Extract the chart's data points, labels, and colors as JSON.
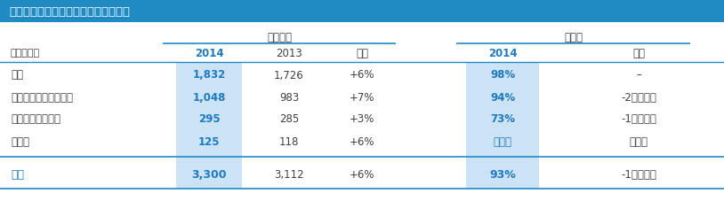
{
  "title": "香港物業組合的租金收入及租出率分析",
  "title_bg": "#1e8bc3",
  "title_color": "#ffffff",
  "subtitle_rental": "租金收入",
  "subtitle_occupancy": "租出率",
  "currency_label": "港幣百萬元",
  "col_headers": [
    "2014",
    "2013",
    "變幅",
    "2014",
    "變幅"
  ],
  "rows": [
    {
      "label": "商鋪",
      "rental_2014": "1,832",
      "rental_2013": "1,726",
      "rental_change": "+6%",
      "occ_2014": "98%",
      "occ_change": "–",
      "occ_2014_blue": true
    },
    {
      "label": "辦公樓及工業／辦公樓",
      "rental_2014": "1,048",
      "rental_2013": "983",
      "rental_change": "+7%",
      "occ_2014": "94%",
      "occ_change": "-2個百分點",
      "occ_2014_blue": true
    },
    {
      "label": "住宅及服務式寓所",
      "rental_2014": "295",
      "rental_2013": "285",
      "rental_change": "+3%",
      "occ_2014": "73%",
      "occ_change": "-1個百分點",
      "occ_2014_blue": true
    },
    {
      "label": "停車場",
      "rental_2014": "125",
      "rental_2013": "118",
      "rental_change": "+6%",
      "occ_2014": "不適用",
      "occ_change": "不適用",
      "occ_2014_blue": true
    }
  ],
  "total_row": {
    "label": "總計",
    "rental_2014": "3,300",
    "rental_2013": "3,112",
    "rental_change": "+6%",
    "occ_2014": "93%",
    "occ_change": "-1個百分點"
  },
  "highlight_bg": "#cce3f5",
  "total_bg": "#ddeefa",
  "blue_bold": "#1e7bbf",
  "normal_color": "#404040",
  "line_color": "#1e8bc3",
  "bg_color": "#ffffff"
}
